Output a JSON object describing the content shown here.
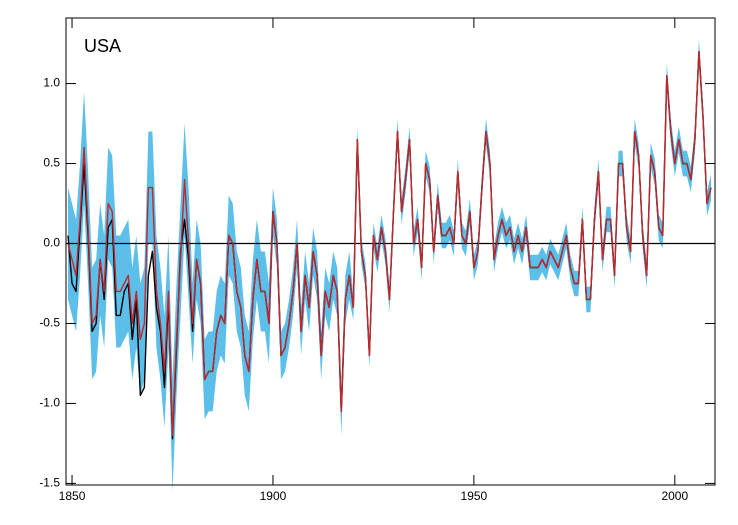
{
  "chart_data": {
    "type": "line",
    "label": "USA",
    "x": [
      1849,
      1850,
      1851,
      1852,
      1853,
      1854,
      1855,
      1856,
      1857,
      1858,
      1859,
      1860,
      1861,
      1862,
      1863,
      1864,
      1865,
      1866,
      1867,
      1868,
      1869,
      1870,
      1871,
      1872,
      1873,
      1874,
      1875,
      1876,
      1877,
      1878,
      1879,
      1880,
      1881,
      1882,
      1883,
      1884,
      1885,
      1886,
      1887,
      1888,
      1889,
      1890,
      1891,
      1892,
      1893,
      1894,
      1895,
      1896,
      1897,
      1898,
      1899,
      1900,
      1901,
      1902,
      1903,
      1904,
      1905,
      1906,
      1907,
      1908,
      1909,
      1910,
      1911,
      1912,
      1913,
      1914,
      1915,
      1916,
      1917,
      1918,
      1919,
      1920,
      1921,
      1922,
      1923,
      1924,
      1925,
      1926,
      1927,
      1928,
      1929,
      1930,
      1931,
      1932,
      1933,
      1934,
      1935,
      1936,
      1937,
      1938,
      1939,
      1940,
      1941,
      1942,
      1943,
      1944,
      1945,
      1946,
      1947,
      1948,
      1949,
      1950,
      1951,
      1952,
      1953,
      1954,
      1955,
      1956,
      1957,
      1958,
      1959,
      1960,
      1961,
      1962,
      1963,
      1964,
      1965,
      1966,
      1967,
      1968,
      1969,
      1970,
      1971,
      1972,
      1973,
      1974,
      1975,
      1976,
      1977,
      1978,
      1979,
      1980,
      1981,
      1982,
      1983,
      1984,
      1985,
      1986,
      1987,
      1988,
      1989,
      1990,
      1991,
      1992,
      1993,
      1994,
      1995,
      1996,
      1997,
      1998,
      1999,
      2000,
      2001,
      2002,
      2003,
      2004,
      2005,
      2006,
      2007,
      2008,
      2009
    ],
    "series": [
      {
        "color": "#000000",
        "values": [
          0.05,
          -0.25,
          -0.3,
          0.1,
          0.5,
          0.05,
          -0.55,
          -0.5,
          -0.1,
          -0.35,
          0.1,
          0.15,
          -0.45,
          -0.45,
          -0.3,
          -0.25,
          -0.6,
          -0.35,
          -0.95,
          -0.9,
          -0.2,
          -0.05,
          -0.4,
          -0.55,
          -0.9,
          -0.35,
          -1.22,
          -0.65,
          -0.05,
          0.15,
          -0.1,
          -0.55,
          -0.1,
          -0.25,
          -0.85,
          -0.8,
          -0.8,
          -0.55,
          -0.45,
          -0.5,
          0.05,
          0.0,
          -0.3,
          -0.4,
          -0.7,
          -0.8,
          -0.35,
          -0.1,
          -0.3,
          -0.3,
          -0.5,
          0.2,
          0.0,
          -0.7,
          -0.65,
          -0.5,
          -0.3,
          0.0,
          -0.55,
          -0.2,
          -0.4,
          -0.05,
          -0.2,
          -0.7,
          -0.3,
          -0.4,
          -0.2,
          -0.3,
          -1.05,
          -0.35,
          -0.2,
          -0.4,
          0.65,
          -0.05,
          -0.2,
          -0.7,
          0.05,
          -0.1,
          0.1,
          -0.05,
          -0.35,
          0.2,
          0.7,
          0.2,
          0.4,
          0.65,
          0.0,
          0.15,
          -0.15,
          0.5,
          0.4,
          -0.05,
          0.3,
          0.05,
          0.05,
          0.1,
          0.0,
          0.45,
          0.05,
          0.0,
          0.2,
          -0.15,
          -0.05,
          0.35,
          0.7,
          0.5,
          -0.1,
          0.05,
          0.15,
          0.05,
          0.1,
          -0.05,
          0.05,
          -0.05,
          0.1,
          -0.15,
          -0.15,
          -0.15,
          -0.1,
          -0.15,
          -0.05,
          -0.1,
          -0.15,
          -0.05,
          0.05,
          -0.15,
          -0.25,
          -0.25,
          0.15,
          -0.35,
          -0.35,
          0.15,
          0.45,
          -0.1,
          0.15,
          0.15,
          -0.2,
          0.5,
          0.5,
          0.1,
          -0.05,
          0.7,
          0.55,
          0.05,
          -0.2,
          0.55,
          0.45,
          0.1,
          0.05,
          1.05,
          0.7,
          0.5,
          0.65,
          0.5,
          0.5,
          0.4,
          0.65,
          1.2,
          0.8,
          0.25,
          0.35
        ]
      },
      {
        "color": "#c0282d",
        "values": [
          0.0,
          -0.1,
          -0.2,
          0.15,
          0.6,
          0.1,
          -0.5,
          -0.45,
          -0.1,
          -0.3,
          0.25,
          0.2,
          -0.3,
          -0.3,
          -0.25,
          -0.2,
          -0.5,
          -0.3,
          -0.6,
          -0.5,
          0.35,
          0.35,
          -0.3,
          -0.5,
          -0.8,
          -0.3,
          -1.2,
          -0.6,
          -0.1,
          0.4,
          0.0,
          -0.5,
          -0.1,
          -0.25,
          -0.85,
          -0.8,
          -0.8,
          -0.55,
          -0.45,
          -0.5,
          0.05,
          0.0,
          -0.3,
          -0.4,
          -0.7,
          -0.8,
          -0.35,
          -0.1,
          -0.3,
          -0.3,
          -0.5,
          0.2,
          0.0,
          -0.7,
          -0.65,
          -0.5,
          -0.3,
          0.0,
          -0.55,
          -0.2,
          -0.4,
          -0.05,
          -0.2,
          -0.7,
          -0.3,
          -0.4,
          -0.2,
          -0.3,
          -1.05,
          -0.35,
          -0.2,
          -0.4,
          0.65,
          -0.05,
          -0.2,
          -0.7,
          0.05,
          -0.1,
          0.1,
          -0.05,
          -0.35,
          0.2,
          0.7,
          0.2,
          0.4,
          0.65,
          0.0,
          0.15,
          -0.15,
          0.5,
          0.4,
          -0.05,
          0.3,
          0.05,
          0.05,
          0.1,
          0.0,
          0.45,
          0.05,
          0.0,
          0.2,
          -0.15,
          -0.05,
          0.35,
          0.7,
          0.5,
          -0.1,
          0.05,
          0.15,
          0.05,
          0.1,
          -0.05,
          0.05,
          -0.05,
          0.1,
          -0.15,
          -0.15,
          -0.15,
          -0.1,
          -0.15,
          -0.05,
          -0.1,
          -0.15,
          -0.05,
          0.05,
          -0.15,
          -0.25,
          -0.25,
          0.15,
          -0.35,
          -0.35,
          0.15,
          0.45,
          -0.1,
          0.15,
          0.15,
          -0.2,
          0.5,
          0.5,
          0.1,
          -0.05,
          0.7,
          0.55,
          0.05,
          -0.2,
          0.55,
          0.45,
          0.1,
          0.05,
          1.05,
          0.7,
          0.5,
          0.65,
          0.5,
          0.5,
          0.4,
          0.65,
          1.2,
          0.8,
          0.25,
          0.35
        ]
      }
    ],
    "band": {
      "color": "#5bbfea",
      "errors": [
        0.35,
        0.35,
        0.35,
        0.35,
        0.35,
        0.35,
        0.35,
        0.35,
        0.35,
        0.35,
        0.35,
        0.35,
        0.35,
        0.35,
        0.35,
        0.35,
        0.35,
        0.35,
        0.35,
        0.35,
        0.35,
        0.35,
        0.35,
        0.35,
        0.35,
        0.35,
        0.35,
        0.35,
        0.35,
        0.35,
        0.35,
        0.25,
        0.25,
        0.25,
        0.25,
        0.25,
        0.25,
        0.25,
        0.25,
        0.25,
        0.25,
        0.25,
        0.25,
        0.25,
        0.25,
        0.25,
        0.25,
        0.25,
        0.25,
        0.25,
        0.25,
        0.15,
        0.15,
        0.15,
        0.15,
        0.15,
        0.15,
        0.15,
        0.15,
        0.15,
        0.15,
        0.15,
        0.15,
        0.15,
        0.15,
        0.15,
        0.15,
        0.15,
        0.15,
        0.15,
        0.15,
        0.08,
        0.08,
        0.08,
        0.08,
        0.08,
        0.08,
        0.08,
        0.08,
        0.08,
        0.08,
        0.08,
        0.08,
        0.08,
        0.08,
        0.08,
        0.08,
        0.08,
        0.08,
        0.08,
        0.08,
        0.08,
        0.08,
        0.08,
        0.08,
        0.08,
        0.08,
        0.08,
        0.08,
        0.08,
        0.08,
        0.08,
        0.08,
        0.08,
        0.08,
        0.08,
        0.08,
        0.08,
        0.08,
        0.08,
        0.08,
        0.08,
        0.08,
        0.08,
        0.08,
        0.08,
        0.08,
        0.08,
        0.08,
        0.08,
        0.08,
        0.08,
        0.08,
        0.08,
        0.08,
        0.08,
        0.08,
        0.08,
        0.08,
        0.08,
        0.08,
        0.08,
        0.08,
        0.08,
        0.08,
        0.08,
        0.08,
        0.08,
        0.08,
        0.08,
        0.08,
        0.08,
        0.08,
        0.08,
        0.08,
        0.08,
        0.08,
        0.08,
        0.08,
        0.08,
        0.08,
        0.08,
        0.08,
        0.08,
        0.08,
        0.08,
        0.08,
        0.08,
        0.08,
        0.08,
        0.08
      ]
    },
    "reference_line": 0,
    "xlim": [
      1848.5,
      2010
    ],
    "ylim": [
      -1.51,
      1.41
    ],
    "xticks": [
      1850,
      1900,
      1950,
      2000
    ],
    "yticks": [
      {
        "value": 1.0,
        "label": "1.0"
      },
      0.5,
      {
        "value": 0.0,
        "label": "0.0"
      },
      -0.5,
      {
        "value": -1.0,
        "label": "-1.0"
      },
      -1.5
    ]
  }
}
